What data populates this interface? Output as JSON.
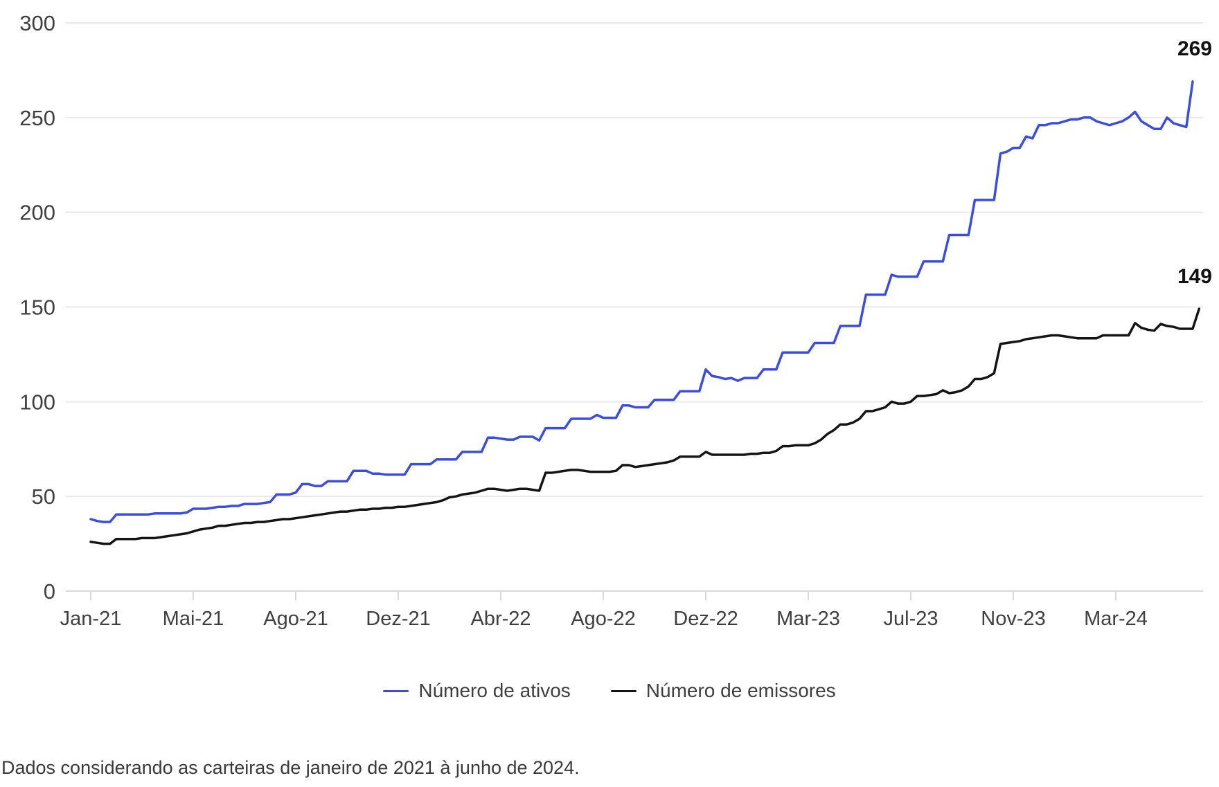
{
  "chart_data": {
    "type": "line",
    "title": "",
    "xlabel": "",
    "ylabel": "",
    "ylim": [
      0,
      300
    ],
    "y_ticks": [
      0,
      50,
      100,
      150,
      200,
      250,
      300
    ],
    "grid": "horizontal",
    "legend_position": "bottom",
    "x_tick_labels": [
      "Jan-21",
      "Mai-21",
      "Ago-21",
      "Dez-21",
      "Abr-22",
      "Ago-22",
      "Dez-22",
      "Mar-23",
      "Jul-23",
      "Nov-23",
      "Mar-24"
    ],
    "x_tick_indices": [
      0,
      16,
      32,
      48,
      64,
      80,
      96,
      112,
      128,
      144,
      160
    ],
    "colors": {
      "ativos": "#3b4de1",
      "emissores": "#141414",
      "gridline": "#e9e9e9",
      "axis_line": "#d9d9d9",
      "tick_text": "#3f3f3f",
      "end_label_text": "#111111"
    },
    "series": [
      {
        "name": "Número de ativos",
        "color": "#3b4de1",
        "end_label": "269",
        "values": [
          38,
          37,
          36.5,
          36.5,
          40.5,
          40.5,
          40.5,
          40.5,
          40.5,
          40.5,
          41,
          41,
          41,
          41,
          41,
          41.5,
          43.5,
          43.5,
          43.5,
          44,
          44.5,
          44.5,
          45,
          45,
          46,
          46,
          46,
          46.5,
          47,
          51,
          51,
          51,
          52,
          56.5,
          56.5,
          55.5,
          55.5,
          58,
          58,
          58,
          58,
          63.5,
          63.5,
          63.5,
          62,
          62,
          61.5,
          61.5,
          61.5,
          61.5,
          67,
          67,
          67,
          67,
          69.5,
          69.5,
          69.5,
          69.5,
          73.5,
          73.5,
          73.5,
          73.5,
          81,
          81,
          80.5,
          80,
          80,
          81.5,
          81.5,
          81.5,
          79.5,
          86,
          86,
          86,
          86,
          91,
          91,
          91,
          91,
          93,
          91.5,
          91.5,
          91.5,
          98,
          98,
          97,
          97,
          97,
          101,
          101,
          101,
          101,
          105.5,
          105.5,
          105.5,
          105.5,
          117,
          113.5,
          113,
          112,
          112.5,
          111,
          112.5,
          112.5,
          112.5,
          117,
          117,
          117,
          126,
          126,
          126,
          126,
          126,
          131,
          131,
          131,
          131,
          140,
          140,
          140,
          140,
          156.5,
          156.5,
          156.5,
          156.5,
          167,
          166,
          166,
          166,
          166,
          174,
          174,
          174,
          174,
          188,
          188,
          188,
          188,
          206.5,
          206.5,
          206.5,
          206.5,
          231,
          232,
          234,
          234,
          240,
          239,
          246,
          246,
          247,
          247,
          248,
          249,
          249,
          250,
          250,
          248,
          247,
          246,
          247,
          248,
          250,
          253,
          248,
          246,
          244,
          244,
          250,
          247,
          246,
          245,
          269
        ]
      },
      {
        "name": "Número de emissores",
        "color": "#141414",
        "end_label": "149",
        "values": [
          26,
          25.5,
          25,
          25,
          27.5,
          27.5,
          27.5,
          27.5,
          28,
          28,
          28,
          28.5,
          29,
          29.5,
          30,
          30.5,
          31.5,
          32.5,
          33,
          33.5,
          34.5,
          34.5,
          35,
          35.5,
          36,
          36,
          36.5,
          36.5,
          37,
          37.5,
          38,
          38,
          38.5,
          39,
          39.5,
          40,
          40.5,
          41,
          41.5,
          42,
          42,
          42.5,
          43,
          43,
          43.5,
          43.5,
          44,
          44,
          44.5,
          44.5,
          45,
          45.5,
          46,
          46.5,
          47,
          48,
          49.5,
          50,
          51,
          51.5,
          52,
          53,
          54,
          54,
          53.5,
          53,
          53.5,
          54,
          54,
          53.5,
          53,
          62.5,
          62.5,
          63,
          63.5,
          64,
          64,
          63.5,
          63,
          63,
          63,
          63,
          63.5,
          66.5,
          66.5,
          65.5,
          66,
          66.5,
          67,
          67.5,
          68,
          69,
          71,
          71,
          71,
          71,
          73.5,
          72,
          72,
          72,
          72,
          72,
          72,
          72.5,
          72.5,
          73,
          73,
          74,
          76.5,
          76.5,
          77,
          77,
          77,
          78,
          80,
          83,
          85,
          88,
          88,
          89,
          91,
          95,
          95,
          96,
          97,
          100,
          99,
          99,
          100,
          103,
          103,
          103.5,
          104,
          106,
          104.5,
          105,
          106,
          108,
          112,
          112,
          113,
          115,
          130.5,
          131,
          131.5,
          132,
          133,
          133.5,
          134,
          134.5,
          135,
          135,
          134.5,
          134,
          133.5,
          133.5,
          133.5,
          133.5,
          135,
          135,
          135,
          135,
          135,
          141.5,
          139,
          138,
          137.5,
          141,
          140,
          139.5,
          138.5,
          138.5,
          138.5,
          149
        ]
      }
    ]
  },
  "legend": {
    "ativos_label": "Número de ativos",
    "emissores_label": "Número de emissores"
  },
  "footer": {
    "note": "Dados considerando as carteiras de janeiro de 2021 à junho de 2024."
  }
}
